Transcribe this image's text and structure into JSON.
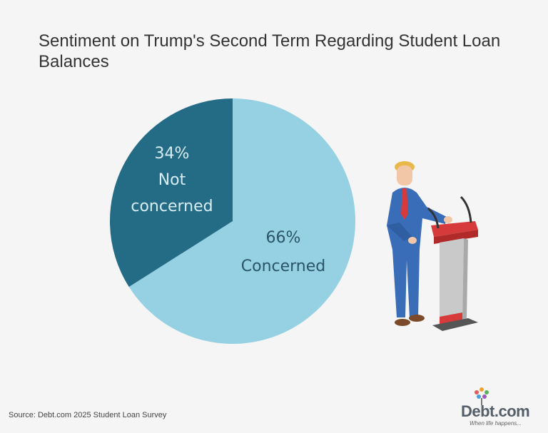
{
  "title": "Sentiment on Trump's Second Term Regarding Student Loan Balances",
  "source": "Source: Debt.com 2025 Student Loan Survey",
  "brand": {
    "name": "Debt.com",
    "tagline": "When life happens..."
  },
  "colors": {
    "background": "#f5f5f5",
    "concerned": "#96d0e3",
    "not_concerned": "#246b85",
    "concerned_text": "#2a5566",
    "not_concerned_text": "#d8ecf3"
  },
  "chart_data": {
    "type": "pie",
    "title": "Sentiment on Trump's Second Term Regarding Student Loan Balances",
    "slices": [
      {
        "label": "Concerned",
        "value": 66,
        "value_label": "66%"
      },
      {
        "label": "Not concerned",
        "value": 34,
        "value_label": "34%"
      }
    ]
  }
}
